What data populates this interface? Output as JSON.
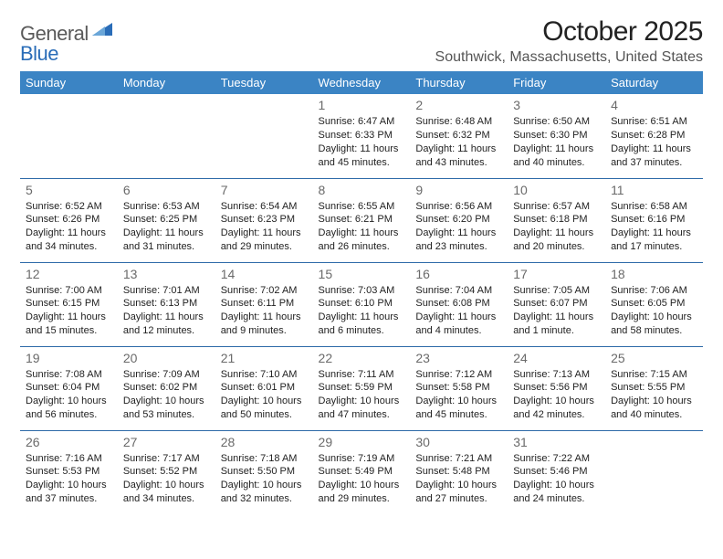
{
  "logo": {
    "general": "General",
    "blue": "Blue"
  },
  "title": "October 2025",
  "location": "Southwick, Massachusetts, United States",
  "colors": {
    "header_bg": "#3b84c4",
    "header_text": "#ffffff",
    "row_border": "#2d6aa8",
    "daynum": "#6a6a6a",
    "body_text": "#222222",
    "logo_gray": "#5a5a5a",
    "logo_blue": "#2a6db8",
    "page_bg": "#ffffff"
  },
  "typography": {
    "title_fontsize": 30,
    "location_fontsize": 16,
    "dayheader_fontsize": 13,
    "daynum_fontsize": 14,
    "daytext_fontsize": 11
  },
  "day_headers": [
    "Sunday",
    "Monday",
    "Tuesday",
    "Wednesday",
    "Thursday",
    "Friday",
    "Saturday"
  ],
  "weeks": [
    [
      {
        "empty": true
      },
      {
        "empty": true
      },
      {
        "empty": true
      },
      {
        "num": "1",
        "sunrise": "Sunrise: 6:47 AM",
        "sunset": "Sunset: 6:33 PM",
        "daylight1": "Daylight: 11 hours",
        "daylight2": "and 45 minutes."
      },
      {
        "num": "2",
        "sunrise": "Sunrise: 6:48 AM",
        "sunset": "Sunset: 6:32 PM",
        "daylight1": "Daylight: 11 hours",
        "daylight2": "and 43 minutes."
      },
      {
        "num": "3",
        "sunrise": "Sunrise: 6:50 AM",
        "sunset": "Sunset: 6:30 PM",
        "daylight1": "Daylight: 11 hours",
        "daylight2": "and 40 minutes."
      },
      {
        "num": "4",
        "sunrise": "Sunrise: 6:51 AM",
        "sunset": "Sunset: 6:28 PM",
        "daylight1": "Daylight: 11 hours",
        "daylight2": "and 37 minutes."
      }
    ],
    [
      {
        "num": "5",
        "sunrise": "Sunrise: 6:52 AM",
        "sunset": "Sunset: 6:26 PM",
        "daylight1": "Daylight: 11 hours",
        "daylight2": "and 34 minutes."
      },
      {
        "num": "6",
        "sunrise": "Sunrise: 6:53 AM",
        "sunset": "Sunset: 6:25 PM",
        "daylight1": "Daylight: 11 hours",
        "daylight2": "and 31 minutes."
      },
      {
        "num": "7",
        "sunrise": "Sunrise: 6:54 AM",
        "sunset": "Sunset: 6:23 PM",
        "daylight1": "Daylight: 11 hours",
        "daylight2": "and 29 minutes."
      },
      {
        "num": "8",
        "sunrise": "Sunrise: 6:55 AM",
        "sunset": "Sunset: 6:21 PM",
        "daylight1": "Daylight: 11 hours",
        "daylight2": "and 26 minutes."
      },
      {
        "num": "9",
        "sunrise": "Sunrise: 6:56 AM",
        "sunset": "Sunset: 6:20 PM",
        "daylight1": "Daylight: 11 hours",
        "daylight2": "and 23 minutes."
      },
      {
        "num": "10",
        "sunrise": "Sunrise: 6:57 AM",
        "sunset": "Sunset: 6:18 PM",
        "daylight1": "Daylight: 11 hours",
        "daylight2": "and 20 minutes."
      },
      {
        "num": "11",
        "sunrise": "Sunrise: 6:58 AM",
        "sunset": "Sunset: 6:16 PM",
        "daylight1": "Daylight: 11 hours",
        "daylight2": "and 17 minutes."
      }
    ],
    [
      {
        "num": "12",
        "sunrise": "Sunrise: 7:00 AM",
        "sunset": "Sunset: 6:15 PM",
        "daylight1": "Daylight: 11 hours",
        "daylight2": "and 15 minutes."
      },
      {
        "num": "13",
        "sunrise": "Sunrise: 7:01 AM",
        "sunset": "Sunset: 6:13 PM",
        "daylight1": "Daylight: 11 hours",
        "daylight2": "and 12 minutes."
      },
      {
        "num": "14",
        "sunrise": "Sunrise: 7:02 AM",
        "sunset": "Sunset: 6:11 PM",
        "daylight1": "Daylight: 11 hours",
        "daylight2": "and 9 minutes."
      },
      {
        "num": "15",
        "sunrise": "Sunrise: 7:03 AM",
        "sunset": "Sunset: 6:10 PM",
        "daylight1": "Daylight: 11 hours",
        "daylight2": "and 6 minutes."
      },
      {
        "num": "16",
        "sunrise": "Sunrise: 7:04 AM",
        "sunset": "Sunset: 6:08 PM",
        "daylight1": "Daylight: 11 hours",
        "daylight2": "and 4 minutes."
      },
      {
        "num": "17",
        "sunrise": "Sunrise: 7:05 AM",
        "sunset": "Sunset: 6:07 PM",
        "daylight1": "Daylight: 11 hours",
        "daylight2": "and 1 minute."
      },
      {
        "num": "18",
        "sunrise": "Sunrise: 7:06 AM",
        "sunset": "Sunset: 6:05 PM",
        "daylight1": "Daylight: 10 hours",
        "daylight2": "and 58 minutes."
      }
    ],
    [
      {
        "num": "19",
        "sunrise": "Sunrise: 7:08 AM",
        "sunset": "Sunset: 6:04 PM",
        "daylight1": "Daylight: 10 hours",
        "daylight2": "and 56 minutes."
      },
      {
        "num": "20",
        "sunrise": "Sunrise: 7:09 AM",
        "sunset": "Sunset: 6:02 PM",
        "daylight1": "Daylight: 10 hours",
        "daylight2": "and 53 minutes."
      },
      {
        "num": "21",
        "sunrise": "Sunrise: 7:10 AM",
        "sunset": "Sunset: 6:01 PM",
        "daylight1": "Daylight: 10 hours",
        "daylight2": "and 50 minutes."
      },
      {
        "num": "22",
        "sunrise": "Sunrise: 7:11 AM",
        "sunset": "Sunset: 5:59 PM",
        "daylight1": "Daylight: 10 hours",
        "daylight2": "and 47 minutes."
      },
      {
        "num": "23",
        "sunrise": "Sunrise: 7:12 AM",
        "sunset": "Sunset: 5:58 PM",
        "daylight1": "Daylight: 10 hours",
        "daylight2": "and 45 minutes."
      },
      {
        "num": "24",
        "sunrise": "Sunrise: 7:13 AM",
        "sunset": "Sunset: 5:56 PM",
        "daylight1": "Daylight: 10 hours",
        "daylight2": "and 42 minutes."
      },
      {
        "num": "25",
        "sunrise": "Sunrise: 7:15 AM",
        "sunset": "Sunset: 5:55 PM",
        "daylight1": "Daylight: 10 hours",
        "daylight2": "and 40 minutes."
      }
    ],
    [
      {
        "num": "26",
        "sunrise": "Sunrise: 7:16 AM",
        "sunset": "Sunset: 5:53 PM",
        "daylight1": "Daylight: 10 hours",
        "daylight2": "and 37 minutes."
      },
      {
        "num": "27",
        "sunrise": "Sunrise: 7:17 AM",
        "sunset": "Sunset: 5:52 PM",
        "daylight1": "Daylight: 10 hours",
        "daylight2": "and 34 minutes."
      },
      {
        "num": "28",
        "sunrise": "Sunrise: 7:18 AM",
        "sunset": "Sunset: 5:50 PM",
        "daylight1": "Daylight: 10 hours",
        "daylight2": "and 32 minutes."
      },
      {
        "num": "29",
        "sunrise": "Sunrise: 7:19 AM",
        "sunset": "Sunset: 5:49 PM",
        "daylight1": "Daylight: 10 hours",
        "daylight2": "and 29 minutes."
      },
      {
        "num": "30",
        "sunrise": "Sunrise: 7:21 AM",
        "sunset": "Sunset: 5:48 PM",
        "daylight1": "Daylight: 10 hours",
        "daylight2": "and 27 minutes."
      },
      {
        "num": "31",
        "sunrise": "Sunrise: 7:22 AM",
        "sunset": "Sunset: 5:46 PM",
        "daylight1": "Daylight: 10 hours",
        "daylight2": "and 24 minutes."
      },
      {
        "empty": true
      }
    ]
  ]
}
